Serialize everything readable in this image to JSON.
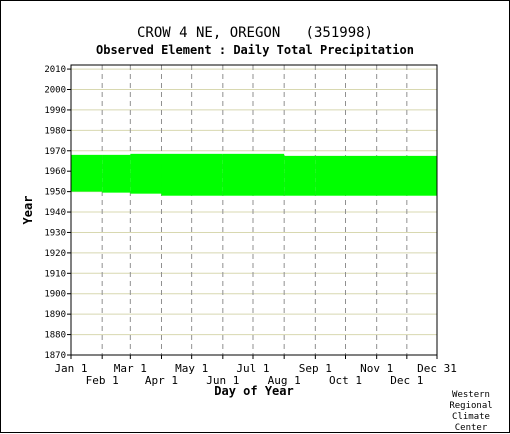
{
  "chart_data": {
    "type": "area",
    "title": "CROW 4 NE, OREGON   (351998)",
    "subtitle": "Observed Element : Daily Total Precipitation",
    "xlabel": "Day of Year",
    "ylabel": "Year",
    "ylim": [
      1870,
      2012
    ],
    "yticks": [
      1870,
      1880,
      1890,
      1900,
      1910,
      1920,
      1930,
      1940,
      1950,
      1960,
      1970,
      1980,
      1990,
      2000,
      2010
    ],
    "xlim": [
      1,
      365
    ],
    "x_ticks_top_row": [
      {
        "label": "Jan 1",
        "day": 1
      },
      {
        "label": "Mar 1",
        "day": 60
      },
      {
        "label": "May 1",
        "day": 121
      },
      {
        "label": "Jul 1",
        "day": 182
      },
      {
        "label": "Sep 1",
        "day": 244
      },
      {
        "label": "Nov 1",
        "day": 305
      },
      {
        "label": "Dec 31",
        "day": 365
      }
    ],
    "x_ticks_bottom_row": [
      {
        "label": "Feb 1",
        "day": 32
      },
      {
        "label": "Apr 1",
        "day": 91
      },
      {
        "label": "Jun 1",
        "day": 152
      },
      {
        "label": "Aug 1",
        "day": 213
      },
      {
        "label": "Oct 1",
        "day": 274
      },
      {
        "label": "Dec 1",
        "day": 335
      }
    ],
    "grid": true,
    "series": [
      {
        "color": "#00ff00",
        "coverage": [
          {
            "start_day": 1,
            "end_day": 31,
            "year_from": 1950,
            "year_to": 1968
          },
          {
            "start_day": 32,
            "end_day": 59,
            "year_from": 1949.5,
            "year_to": 1968
          },
          {
            "start_day": 60,
            "end_day": 90,
            "year_from": 1949,
            "year_to": 1968.5
          },
          {
            "start_day": 91,
            "end_day": 151,
            "year_from": 1948,
            "year_to": 1968.5
          },
          {
            "start_day": 152,
            "end_day": 212,
            "year_from": 1948,
            "year_to": 1968.5
          },
          {
            "start_day": 213,
            "end_day": 243,
            "year_from": 1948,
            "year_to": 1967.5
          },
          {
            "start_day": 244,
            "end_day": 273,
            "year_from": 1948,
            "year_to": 1967.5
          },
          {
            "start_day": 274,
            "end_day": 365,
            "year_from": 1948,
            "year_to": 1967.5
          }
        ]
      }
    ]
  },
  "credit": [
    "Western",
    "Regional",
    "Climate",
    "Center"
  ]
}
